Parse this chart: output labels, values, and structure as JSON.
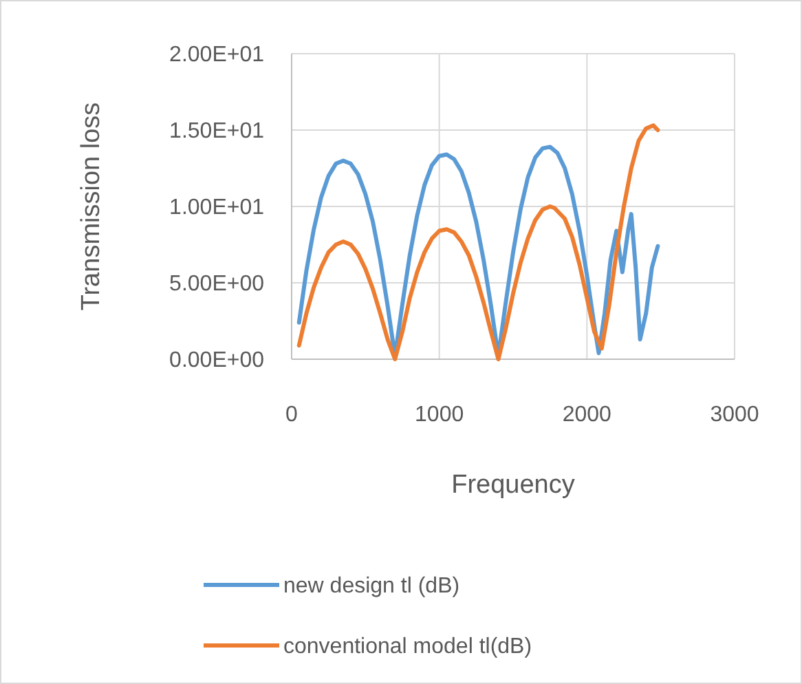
{
  "chart_data": {
    "type": "line",
    "xlabel": "Frequency",
    "ylabel": "Transmission loss",
    "xlim": [
      0,
      3000
    ],
    "xticks": [
      0,
      1000,
      2000,
      3000
    ],
    "ylim": [
      0,
      20
    ],
    "yticks": [
      {
        "value": 0,
        "label": "0.00E+00"
      },
      {
        "value": 5,
        "label": "5.00E+00"
      },
      {
        "value": 10,
        "label": "1.00E+01"
      },
      {
        "value": 15,
        "label": "1.50E+01"
      },
      {
        "value": 20,
        "label": "2.00E+01"
      }
    ],
    "grid": true,
    "legend": "bottom",
    "marker": "none",
    "line_style": "solid",
    "x": [
      50,
      100,
      150,
      200,
      250,
      300,
      350,
      400,
      450,
      500,
      550,
      600,
      650,
      700,
      750,
      800,
      850,
      900,
      950,
      1000,
      1050,
      1100,
      1150,
      1200,
      1250,
      1300,
      1350,
      1400,
      1450,
      1500,
      1550,
      1600,
      1650,
      1700,
      1750,
      1800,
      1850,
      1900,
      1950,
      2000,
      2050,
      2080,
      2120,
      2160,
      2200,
      2240,
      2280,
      2300,
      2330,
      2360,
      2400,
      2440,
      2480
    ],
    "series": [
      {
        "name": "new design tl (dB)",
        "color": "#5b9bd5",
        "values": [
          2.4,
          5.8,
          8.5,
          10.6,
          12,
          12.8,
          13,
          12.8,
          12.1,
          10.8,
          9,
          6.5,
          3.5,
          0.2,
          3.6,
          6.8,
          9.4,
          11.4,
          12.7,
          13.3,
          13.4,
          13.1,
          12.3,
          10.9,
          9,
          6.5,
          3.5,
          0.2,
          3.7,
          7,
          9.8,
          11.9,
          13.2,
          13.8,
          13.9,
          13.5,
          12.5,
          10.8,
          8.4,
          5.5,
          2.2,
          0.4,
          3,
          6.5,
          8.4,
          5.7,
          8.5,
          9.5,
          6,
          1.3,
          3,
          6,
          7.4
        ]
      },
      {
        "name": "conventional model tl(dB)",
        "color": "#ed7d31",
        "x": [
          50,
          100,
          150,
          200,
          250,
          300,
          350,
          400,
          450,
          500,
          550,
          600,
          650,
          700,
          750,
          800,
          850,
          900,
          950,
          1000,
          1050,
          1100,
          1150,
          1200,
          1250,
          1300,
          1350,
          1400,
          1450,
          1500,
          1550,
          1600,
          1650,
          1700,
          1750,
          1780,
          1850,
          1900,
          1950,
          2000,
          2050,
          2100,
          2150,
          2200,
          2250,
          2300,
          2350,
          2400,
          2450,
          2480
        ],
        "values": [
          0.9,
          3,
          4.7,
          6,
          7,
          7.5,
          7.7,
          7.5,
          6.9,
          5.9,
          4.6,
          3,
          1.3,
          0,
          1.8,
          4,
          5.7,
          7,
          7.9,
          8.4,
          8.5,
          8.3,
          7.7,
          6.8,
          5.4,
          3.7,
          1.8,
          0,
          2,
          4.3,
          6.3,
          7.9,
          9.1,
          9.8,
          10,
          9.9,
          9.2,
          8,
          6.2,
          4,
          1.8,
          0.7,
          3.5,
          7,
          10,
          12.5,
          14.3,
          15.1,
          15.3,
          15
        ]
      }
    ]
  }
}
